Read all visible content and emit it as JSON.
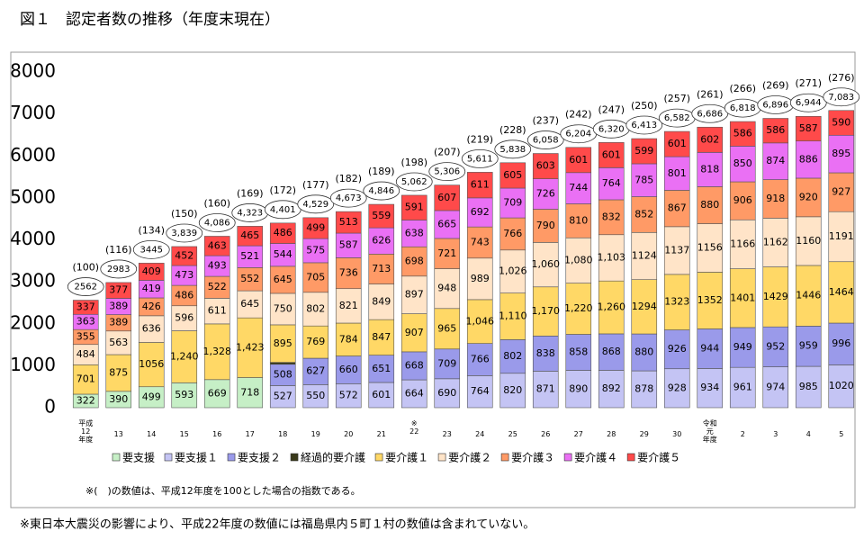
{
  "chart_data": {
    "type": "bar",
    "stacked": true,
    "title": "図１　認定者数の推移（年度末現在）",
    "categories": [
      "平成\n12\n年度",
      "13",
      "14",
      "15",
      "16",
      "17",
      "18",
      "19",
      "20",
      "21",
      "※\n22",
      "23",
      "24",
      "25",
      "26",
      "27",
      "28",
      "29",
      "30",
      "令和\n元\n年度",
      "2",
      "3",
      "4",
      "5"
    ],
    "series": [
      {
        "name": "要支援",
        "color": "#c6efc6",
        "values": [
          322,
          390,
          499,
          593,
          669,
          718,
          null,
          null,
          null,
          null,
          null,
          null,
          null,
          null,
          null,
          null,
          null,
          null,
          null,
          null,
          null,
          null,
          null,
          null
        ]
      },
      {
        "name": "要支援１",
        "color": "#c4c4f4",
        "values": [
          null,
          null,
          null,
          null,
          null,
          null,
          527,
          550,
          572,
          601,
          664,
          690,
          764,
          820,
          871,
          890,
          892,
          878,
          928,
          934,
          961,
          974,
          985,
          1020
        ]
      },
      {
        "name": "要支援２",
        "color": "#9a9aea",
        "values": [
          null,
          null,
          null,
          null,
          null,
          null,
          508,
          627,
          660,
          651,
          668,
          709,
          766,
          802,
          838,
          858,
          868,
          880,
          926,
          944,
          949,
          952,
          959,
          996
        ]
      },
      {
        "name": "経過的要介護",
        "color": "#3a3a1a",
        "values": [
          null,
          null,
          null,
          null,
          null,
          null,
          45,
          2,
          0,
          null,
          null,
          null,
          null,
          null,
          null,
          null,
          null,
          null,
          null,
          null,
          null,
          null,
          null,
          null
        ]
      },
      {
        "name": "要介護１",
        "color": "#ffd866",
        "values": [
          701,
          875,
          1056,
          1240,
          1328,
          1423,
          895,
          769,
          784,
          847,
          907,
          965,
          1046,
          1110,
          1170,
          1220,
          1260,
          1294,
          1323,
          1352,
          1401,
          1429,
          1446,
          1464
        ],
        "value_labels": [
          "701",
          "875",
          "1056",
          "1,240",
          "1,328",
          "1,423",
          "895",
          "769",
          "784",
          "847",
          "907",
          "965",
          "1,046",
          "1,110",
          "1,170",
          "1,220",
          "1,260",
          "1294",
          "1323",
          "1352",
          "1401",
          "1429",
          "1446",
          "1464"
        ]
      },
      {
        "name": "要介護２",
        "color": "#ffe4c8",
        "values": [
          484,
          563,
          636,
          596,
          611,
          645,
          750,
          802,
          821,
          849,
          897,
          948,
          989,
          1026,
          1060,
          1080,
          1103,
          1124,
          1137,
          1156,
          1166,
          1162,
          1160,
          1191
        ],
        "value_labels": [
          "484",
          "563",
          "636",
          "596",
          "611",
          "645",
          "750",
          "802",
          "821",
          "849",
          "897",
          "948",
          "989",
          "1,026",
          "1,060",
          "1,080",
          "1,103",
          "1124",
          "1137",
          "1156",
          "1166",
          "1162",
          "1160",
          "1191"
        ]
      },
      {
        "name": "要介護３",
        "color": "#ff9a66",
        "values": [
          355,
          389,
          426,
          486,
          522,
          552,
          645,
          705,
          736,
          713,
          698,
          721,
          743,
          766,
          790,
          810,
          832,
          852,
          867,
          880,
          906,
          918,
          920,
          927
        ]
      },
      {
        "name": "要介護４",
        "color": "#ea70f4",
        "values": [
          363,
          389,
          419,
          473,
          493,
          521,
          544,
          575,
          587,
          626,
          638,
          665,
          692,
          709,
          726,
          744,
          764,
          785,
          801,
          818,
          850,
          874,
          886,
          895
        ]
      },
      {
        "name": "要介護５",
        "color": "#ff4a4a",
        "values": [
          337,
          377,
          409,
          452,
          463,
          465,
          486,
          499,
          513,
          559,
          591,
          607,
          611,
          605,
          603,
          601,
          601,
          599,
          601,
          602,
          586,
          586,
          587,
          590
        ]
      }
    ],
    "totals": [
      2562,
      2983,
      3445,
      3839,
      4086,
      4323,
      4401,
      4529,
      4673,
      4846,
      5062,
      5306,
      5611,
      5838,
      6058,
      6204,
      6320,
      6413,
      6582,
      6686,
      6818,
      6896,
      6944,
      7083
    ],
    "total_labels": [
      "2562",
      "2983",
      "3445",
      "3,839",
      "4,086",
      "4,323",
      "4,401",
      "4,529",
      "4,673",
      "4,846",
      "5,062",
      "5,306",
      "5,611",
      "5,838",
      "6,058",
      "6,204",
      "6,320",
      "6,413",
      "6,582",
      "6,686",
      "6,818",
      "6,896",
      "6,944",
      "7,083"
    ],
    "index": [
      100,
      116,
      134,
      150,
      160,
      169,
      172,
      177,
      182,
      189,
      198,
      207,
      219,
      228,
      237,
      242,
      247,
      250,
      257,
      261,
      266,
      269,
      271,
      276
    ],
    "index_labels": [
      "(100)",
      "(116)",
      "(134)",
      "(150)",
      "(160)",
      "(169)",
      "(172)",
      "(177)",
      "(182)",
      "(189)",
      "(198)",
      "(207)",
      "(219)",
      "(228)",
      "(237)",
      "(242)",
      "(247)",
      "(250)",
      "(257)",
      "(261)",
      "(266)",
      "(269)",
      "(271)",
      "(276)"
    ],
    "ylim": [
      0,
      8000
    ],
    "yticks": [
      0,
      1000,
      2000,
      3000,
      4000,
      5000,
      6000,
      7000,
      8000
    ],
    "note": "※(　)の数値は、平成12年度を100とした場合の指数である。",
    "footnote": "※東日本大震災の影響により、平成22年度の数値には福島県内５町１村の数値は含まれていない。"
  }
}
